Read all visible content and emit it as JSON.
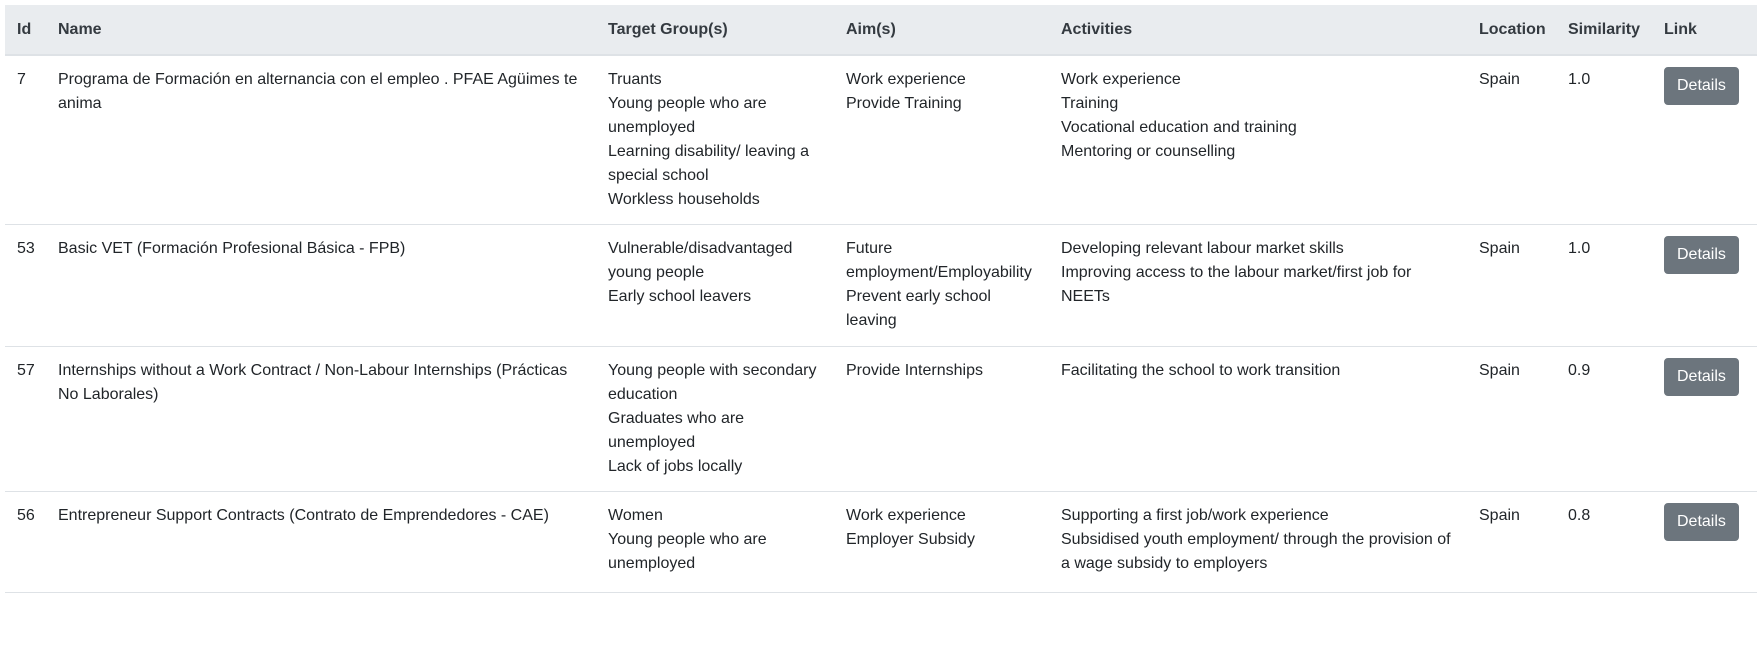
{
  "headers": {
    "id": "Id",
    "name": "Name",
    "target": "Target Group(s)",
    "aims": "Aim(s)",
    "activities": "Activities",
    "location": "Location",
    "similarity": "Similarity",
    "link": "Link"
  },
  "rows": [
    {
      "id": "7",
      "name": "Programa de Formación en alternancia con el empleo . PFAE Agüimes te anima",
      "target": [
        "Truants",
        "Young people who are unemployed",
        "Learning disability/ leaving a special school",
        "Workless households"
      ],
      "aims": [
        "Work experience",
        "Provide Training"
      ],
      "activities": [
        "Work experience",
        "Training",
        "Vocational education and training",
        "Mentoring or counselling"
      ],
      "location": "Spain",
      "similarity": "1.0",
      "button": "Details"
    },
    {
      "id": "53",
      "name": "Basic VET (Formación Profesional Básica - FPB)",
      "target": [
        "Vulnerable/disadvantaged young people",
        "Early school leavers"
      ],
      "aims": [
        "Future employment/Employability",
        "Prevent early school leaving"
      ],
      "activities": [
        "Developing relevant labour market skills",
        "Improving access to the labour market/first job for NEETs"
      ],
      "location": "Spain",
      "similarity": "1.0",
      "button": "Details"
    },
    {
      "id": "57",
      "name": "Internships without a Work Contract / Non-Labour Internships (Prácticas No Laborales)",
      "target": [
        "Young people with secondary education",
        "Graduates who are unemployed",
        "Lack of jobs locally"
      ],
      "aims": [
        "Provide Internships"
      ],
      "activities": [
        "Facilitating the school to work transition"
      ],
      "location": "Spain",
      "similarity": "0.9",
      "button": "Details"
    },
    {
      "id": "56",
      "name": "Entrepreneur Support Contracts (Contrato de Emprendedores - CAE)",
      "target": [
        "Women",
        "Young people who are unemployed"
      ],
      "aims": [
        "Work experience",
        "Employer Subsidy"
      ],
      "activities": [
        "Supporting a first job/work experience",
        "Subsidised youth employment/ through the provision of a wage subsidy to employers"
      ],
      "location": "Spain",
      "similarity": "0.8",
      "button": "Details"
    }
  ]
}
